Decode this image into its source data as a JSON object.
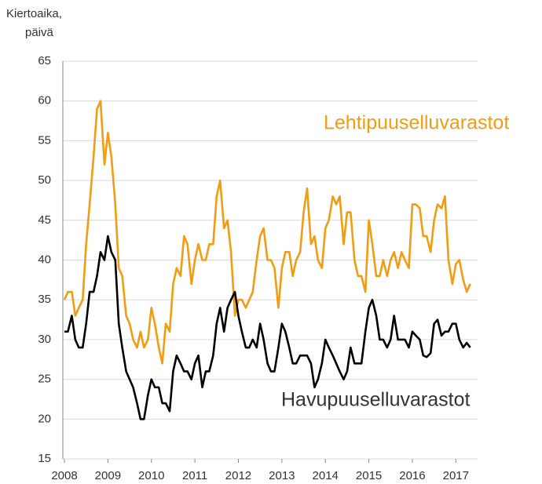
{
  "chart_data": {
    "type": "line",
    "ylabel": [
      "Kiertoaika,",
      "päivä"
    ],
    "x": [
      2008,
      2008.08,
      2008.17,
      2008.25,
      2008.33,
      2008.42,
      2008.5,
      2008.58,
      2008.67,
      2008.75,
      2008.83,
      2008.92,
      2009,
      2009.08,
      2009.17,
      2009.25,
      2009.33,
      2009.42,
      2009.5,
      2009.58,
      2009.67,
      2009.75,
      2009.83,
      2009.92,
      2010,
      2010.08,
      2010.17,
      2010.25,
      2010.33,
      2010.42,
      2010.5,
      2010.58,
      2010.67,
      2010.75,
      2010.83,
      2010.92,
      2011,
      2011.08,
      2011.17,
      2011.25,
      2011.33,
      2011.42,
      2011.5,
      2011.58,
      2011.67,
      2011.75,
      2011.83,
      2011.92,
      2012,
      2012.08,
      2012.17,
      2012.25,
      2012.33,
      2012.42,
      2012.5,
      2012.58,
      2012.67,
      2012.75,
      2012.83,
      2012.92,
      2013,
      2013.08,
      2013.17,
      2013.25,
      2013.33,
      2013.42,
      2013.5,
      2013.58,
      2013.67,
      2013.75,
      2013.83,
      2013.92,
      2014,
      2014.08,
      2014.17,
      2014.25,
      2014.33,
      2014.42,
      2014.5,
      2014.58,
      2014.67,
      2014.75,
      2014.83,
      2014.92,
      2015,
      2015.08,
      2015.17,
      2015.25,
      2015.33,
      2015.42,
      2015.5,
      2015.58,
      2015.67,
      2015.75,
      2015.83,
      2015.92,
      2016,
      2016.08,
      2016.17,
      2016.25,
      2016.33,
      2016.42,
      2016.5,
      2016.58,
      2016.67,
      2016.75,
      2016.83,
      2016.92,
      2017,
      2017.08,
      2017.17,
      2017.25,
      2017.33
    ],
    "series": [
      {
        "name": "Lehtipuuselluvarastot",
        "color": "#f39c12",
        "values": [
          35,
          36,
          36,
          33,
          34,
          35,
          42,
          47,
          53,
          59,
          60,
          52,
          56,
          53,
          47,
          39,
          38,
          33,
          32,
          30,
          29,
          31,
          29,
          30,
          34,
          32,
          29,
          27,
          32,
          31,
          37,
          39,
          38,
          43,
          42,
          37,
          40,
          42,
          40,
          40,
          42,
          42,
          48,
          50,
          44,
          45,
          41,
          33,
          35,
          35,
          34,
          35,
          36,
          40,
          43,
          44,
          40,
          40,
          39,
          34,
          39,
          41,
          41,
          38,
          40,
          41,
          46,
          49,
          42,
          43,
          40,
          39,
          44,
          45,
          48,
          47,
          48,
          42,
          46,
          46,
          40,
          38,
          38,
          36,
          45,
          42,
          38,
          38,
          40,
          38,
          40,
          41,
          39,
          41,
          40,
          39,
          47,
          47,
          46.5,
          43,
          43,
          41,
          45,
          47,
          46.5,
          48,
          40,
          37,
          39.5,
          40,
          37.5,
          36,
          37
        ]
      },
      {
        "name": "Havupuuselluvarastot",
        "color": "#000000",
        "values": [
          31,
          31,
          33,
          30,
          29,
          29,
          32,
          36,
          36,
          38,
          41,
          40,
          43,
          41,
          40,
          32,
          29,
          26,
          25,
          24,
          22,
          20,
          20,
          23,
          25,
          24,
          24,
          22,
          22,
          21,
          26,
          28,
          27,
          26,
          26,
          25,
          27,
          28,
          24,
          26,
          26,
          28,
          32,
          34,
          31,
          34,
          35,
          36,
          33,
          31,
          29,
          29,
          30,
          29,
          32,
          30,
          27,
          26,
          26,
          29,
          32,
          31,
          29,
          27,
          27,
          28,
          28,
          28,
          27,
          24,
          25,
          27,
          30,
          29,
          28,
          27,
          26,
          25,
          26,
          29,
          27,
          27,
          27,
          31,
          34,
          35,
          33,
          30,
          30,
          29,
          30,
          33,
          30,
          30,
          30,
          29,
          31,
          30.5,
          30,
          28,
          27.8,
          28.3,
          32,
          32.5,
          30.5,
          31,
          31,
          32,
          32,
          30,
          29,
          29.6,
          29
        ]
      }
    ],
    "xlim": [
      2008,
      2017.5
    ],
    "xticks": [
      2008,
      2009,
      2010,
      2011,
      2012,
      2013,
      2014,
      2015,
      2016,
      2017
    ],
    "ylim": [
      15,
      65
    ],
    "yticks": [
      15,
      20,
      25,
      30,
      35,
      40,
      45,
      50,
      55,
      60,
      65
    ],
    "grid": true
  }
}
